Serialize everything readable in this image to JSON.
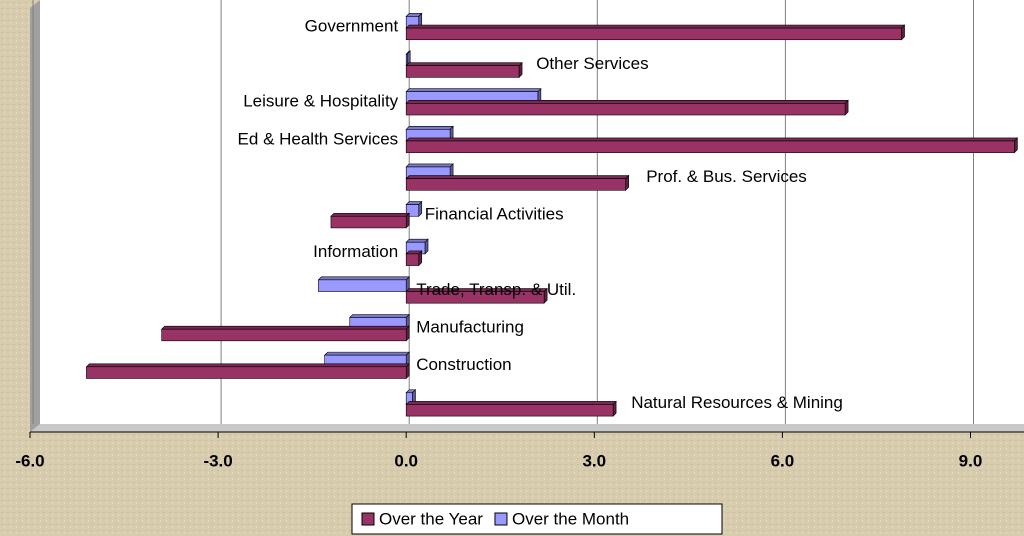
{
  "chart_data": {
    "type": "bar",
    "orientation": "horizontal",
    "categories": [
      "Government",
      "Other Services",
      "Leisure & Hospitality",
      "Ed & Health Services",
      "Prof. & Bus. Services",
      "Financial Activities",
      "Information",
      "Trade, Transp. & Util.",
      "Manufacturing",
      "Construction",
      "Natural Resources & Mining"
    ],
    "series": [
      {
        "name": "Over the Year",
        "color": "#993366",
        "values": [
          7.9,
          1.8,
          7.0,
          9.7,
          3.5,
          -1.2,
          0.2,
          2.2,
          -3.9,
          -5.1,
          3.3
        ]
      },
      {
        "name": "Over the Month",
        "color": "#9999ff",
        "values": [
          0.2,
          0.0,
          2.1,
          0.7,
          0.7,
          0.2,
          0.3,
          -1.4,
          -0.9,
          -1.3,
          0.1
        ]
      }
    ],
    "xlim": [
      -6,
      9.9
    ],
    "xticks": [
      {
        "value": -6,
        "label": "-6.0"
      },
      {
        "value": -3,
        "label": "-3.0"
      },
      {
        "value": 0,
        "label": "0.0"
      },
      {
        "value": 3,
        "label": "3.0"
      },
      {
        "value": 6,
        "label": "6.0"
      },
      {
        "value": 9,
        "label": "9.0"
      }
    ],
    "grid": true,
    "legend": "bottom"
  }
}
